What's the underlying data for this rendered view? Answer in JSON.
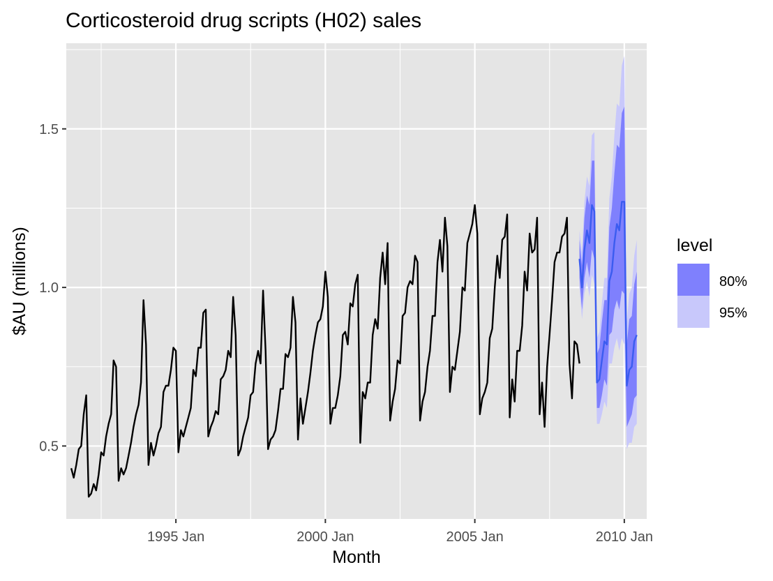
{
  "chart_data": {
    "type": "line",
    "title": "Corticosteroid drug scripts (H02) sales",
    "xlabel": "Month",
    "ylabel": "$AU (millions)",
    "x_ticks": [
      "1995 Jan",
      "2000 Jan",
      "2005 Jan",
      "2010 Jan"
    ],
    "y_ticks": [
      "0.5",
      "1.0",
      "1.5"
    ],
    "y_tick_values": [
      0.5,
      1.0,
      1.5
    ],
    "xlim": [
      "1991-05",
      "2010-10"
    ],
    "ylim": [
      0.27,
      1.77
    ],
    "grid": true,
    "legend": {
      "title": "level",
      "position": "right",
      "entries": [
        {
          "label": "80%",
          "color": "#7f80fd"
        },
        {
          "label": "95%",
          "color": "#c8c8fb"
        }
      ]
    },
    "colors": {
      "panel": "#e5e5e5",
      "grid": "#ffffff",
      "history": "#000000",
      "forecast": "#3b5cf0",
      "band80": "#7f80fd",
      "band95": "#c8c8fb"
    },
    "history": {
      "name": "H02 sales",
      "start": "1991-07",
      "values": [
        0.43,
        0.4,
        0.44,
        0.49,
        0.5,
        0.6,
        0.66,
        0.34,
        0.35,
        0.38,
        0.36,
        0.41,
        0.48,
        0.47,
        0.53,
        0.57,
        0.6,
        0.77,
        0.75,
        0.39,
        0.43,
        0.41,
        0.43,
        0.47,
        0.51,
        0.56,
        0.6,
        0.63,
        0.7,
        0.96,
        0.82,
        0.44,
        0.51,
        0.47,
        0.5,
        0.54,
        0.56,
        0.67,
        0.69,
        0.69,
        0.74,
        0.81,
        0.8,
        0.48,
        0.55,
        0.53,
        0.56,
        0.59,
        0.62,
        0.74,
        0.72,
        0.81,
        0.81,
        0.92,
        0.93,
        0.53,
        0.56,
        0.58,
        0.61,
        0.6,
        0.71,
        0.72,
        0.74,
        0.8,
        0.78,
        0.97,
        0.85,
        0.47,
        0.49,
        0.53,
        0.56,
        0.59,
        0.66,
        0.67,
        0.76,
        0.8,
        0.76,
        0.99,
        0.8,
        0.49,
        0.52,
        0.53,
        0.55,
        0.61,
        0.68,
        0.68,
        0.79,
        0.78,
        0.81,
        0.97,
        0.89,
        0.52,
        0.65,
        0.57,
        0.62,
        0.67,
        0.73,
        0.8,
        0.85,
        0.89,
        0.9,
        0.94,
        1.05,
        0.97,
        0.57,
        0.62,
        0.62,
        0.66,
        0.72,
        0.85,
        0.86,
        0.82,
        0.95,
        0.94,
        1.01,
        1.04,
        0.51,
        0.67,
        0.65,
        0.7,
        0.7,
        0.85,
        0.9,
        0.87,
        1.03,
        1.11,
        1.01,
        1.14,
        0.58,
        0.64,
        0.68,
        0.77,
        0.76,
        0.91,
        0.92,
        1.0,
        1.02,
        1.01,
        1.1,
        1.08,
        0.58,
        0.64,
        0.67,
        0.75,
        0.8,
        0.91,
        0.91,
        1.08,
        1.15,
        1.05,
        1.22,
        1.13,
        0.67,
        0.75,
        0.74,
        0.8,
        0.86,
        1.0,
        0.99,
        1.14,
        1.17,
        1.2,
        1.26,
        1.17,
        0.6,
        0.65,
        0.67,
        0.7,
        0.84,
        0.87,
        1.0,
        1.1,
        1.03,
        1.15,
        1.16,
        1.23,
        0.59,
        0.71,
        0.64,
        0.8,
        0.8,
        0.88,
        1.05,
        0.99,
        1.17,
        1.11,
        1.12,
        1.22,
        0.6,
        0.7,
        0.56,
        0.75,
        0.85,
        0.96,
        1.08,
        1.11,
        1.11,
        1.16,
        1.17,
        1.22,
        0.76,
        0.65,
        0.83,
        0.82,
        0.76
      ]
    },
    "forecast": {
      "start": "2008-07",
      "mean": [
        1.09,
        1.0,
        1.12,
        1.18,
        1.14,
        1.26,
        1.24,
        0.7,
        0.71,
        0.77,
        0.83,
        0.82,
        1.02,
        1.05,
        1.14,
        1.2,
        1.18,
        1.27,
        1.27,
        0.69,
        0.74,
        0.75,
        0.83,
        0.85
      ],
      "lo80": [
        1.03,
        0.93,
        1.03,
        1.08,
        1.03,
        1.12,
        1.09,
        0.62,
        0.62,
        0.66,
        0.71,
        0.69,
        0.85,
        0.86,
        0.93,
        0.96,
        0.93,
        0.99,
        0.98,
        0.56,
        0.58,
        0.6,
        0.65,
        0.66
      ],
      "hi80": [
        1.15,
        1.07,
        1.22,
        1.29,
        1.26,
        1.4,
        1.4,
        0.79,
        0.81,
        0.89,
        0.96,
        0.96,
        1.19,
        1.25,
        1.36,
        1.45,
        1.44,
        1.55,
        1.57,
        0.82,
        0.9,
        0.91,
        1.01,
        1.05
      ],
      "lo95": [
        1.0,
        0.9,
        0.98,
        1.02,
        0.97,
        1.04,
        1.01,
        0.57,
        0.57,
        0.6,
        0.64,
        0.62,
        0.76,
        0.76,
        0.81,
        0.84,
        0.8,
        0.84,
        0.82,
        0.49,
        0.51,
        0.51,
        0.56,
        0.57
      ],
      "hi95": [
        1.18,
        1.11,
        1.27,
        1.35,
        1.32,
        1.48,
        1.49,
        0.84,
        0.86,
        0.95,
        1.03,
        1.03,
        1.28,
        1.35,
        1.48,
        1.58,
        1.57,
        1.7,
        1.73,
        0.89,
        0.98,
        1.0,
        1.1,
        1.15
      ]
    }
  }
}
